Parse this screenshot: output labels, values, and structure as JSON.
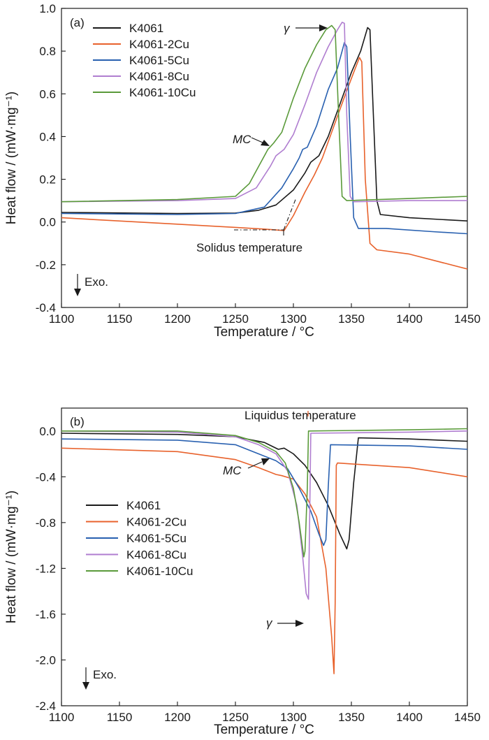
{
  "chart_data": [
    {
      "type": "line",
      "panel_label": "(a)",
      "xlabel": "Temperature / °C",
      "ylabel": "Heat flow / (mW·mg⁻¹)",
      "xlim": [
        1100,
        1450
      ],
      "ylim": [
        -0.4,
        1.0
      ],
      "xticks": [
        "1100",
        "1150",
        "1200",
        "1250",
        "1300",
        "1350",
        "1400",
        "1450"
      ],
      "yticks": [
        "-0.4",
        "-0.2",
        "0.0",
        "0.2",
        "0.4",
        "0.6",
        "0.8",
        "1.0"
      ],
      "grid": false,
      "legend_position": "top-left",
      "series": [
        {
          "name": "K4061",
          "color": "#1a1a1a",
          "points": [
            [
              1100,
              0.045
            ],
            [
              1200,
              0.04
            ],
            [
              1250,
              0.042
            ],
            [
              1270,
              0.055
            ],
            [
              1285,
              0.08
            ],
            [
              1300,
              0.15
            ],
            [
              1310,
              0.23
            ],
            [
              1315,
              0.28
            ],
            [
              1322,
              0.31
            ],
            [
              1330,
              0.4
            ],
            [
              1340,
              0.55
            ],
            [
              1350,
              0.7
            ],
            [
              1358,
              0.8
            ],
            [
              1364,
              0.91
            ],
            [
              1366,
              0.9
            ],
            [
              1369,
              0.5
            ],
            [
              1372,
              0.1
            ],
            [
              1375,
              0.035
            ],
            [
              1400,
              0.02
            ],
            [
              1450,
              0.005
            ]
          ]
        },
        {
          "name": "K4061-2Cu",
          "color": "#e8622c",
          "points": [
            [
              1100,
              0.02
            ],
            [
              1200,
              -0.01
            ],
            [
              1250,
              -0.025
            ],
            [
              1280,
              -0.035
            ],
            [
              1292,
              -0.04
            ],
            [
              1300,
              0.03
            ],
            [
              1310,
              0.14
            ],
            [
              1318,
              0.22
            ],
            [
              1325,
              0.3
            ],
            [
              1335,
              0.45
            ],
            [
              1345,
              0.6
            ],
            [
              1352,
              0.7
            ],
            [
              1357,
              0.77
            ],
            [
              1359,
              0.75
            ],
            [
              1362,
              0.2
            ],
            [
              1366,
              -0.1
            ],
            [
              1372,
              -0.13
            ],
            [
              1400,
              -0.15
            ],
            [
              1450,
              -0.22
            ]
          ]
        },
        {
          "name": "K4061-5Cu",
          "color": "#2860b0",
          "points": [
            [
              1100,
              0.04
            ],
            [
              1200,
              0.035
            ],
            [
              1250,
              0.04
            ],
            [
              1275,
              0.07
            ],
            [
              1290,
              0.16
            ],
            [
              1300,
              0.25
            ],
            [
              1305,
              0.3
            ],
            [
              1308,
              0.34
            ],
            [
              1312,
              0.35
            ],
            [
              1320,
              0.45
            ],
            [
              1330,
              0.62
            ],
            [
              1338,
              0.72
            ],
            [
              1344,
              0.84
            ],
            [
              1346,
              0.82
            ],
            [
              1349,
              0.4
            ],
            [
              1352,
              0.02
            ],
            [
              1356,
              -0.03
            ],
            [
              1380,
              -0.03
            ],
            [
              1420,
              -0.045
            ],
            [
              1450,
              -0.055
            ]
          ]
        },
        {
          "name": "K4061-8Cu",
          "color": "#b07ed0",
          "points": [
            [
              1100,
              0.095
            ],
            [
              1200,
              0.1
            ],
            [
              1250,
              0.11
            ],
            [
              1268,
              0.16
            ],
            [
              1280,
              0.26
            ],
            [
              1285,
              0.31
            ],
            [
              1292,
              0.34
            ],
            [
              1300,
              0.41
            ],
            [
              1310,
              0.55
            ],
            [
              1320,
              0.7
            ],
            [
              1330,
              0.82
            ],
            [
              1338,
              0.9
            ],
            [
              1342,
              0.935
            ],
            [
              1344,
              0.93
            ],
            [
              1346,
              0.5
            ],
            [
              1349,
              0.12
            ],
            [
              1352,
              0.095
            ],
            [
              1400,
              0.1
            ],
            [
              1450,
              0.1
            ]
          ]
        },
        {
          "name": "K4061-10Cu",
          "color": "#5a9a3a",
          "points": [
            [
              1100,
              0.095
            ],
            [
              1200,
              0.105
            ],
            [
              1250,
              0.12
            ],
            [
              1262,
              0.18
            ],
            [
              1272,
              0.28
            ],
            [
              1278,
              0.34
            ],
            [
              1283,
              0.37
            ],
            [
              1290,
              0.42
            ],
            [
              1300,
              0.58
            ],
            [
              1310,
              0.72
            ],
            [
              1320,
              0.83
            ],
            [
              1328,
              0.9
            ],
            [
              1333,
              0.92
            ],
            [
              1336,
              0.9
            ],
            [
              1339,
              0.5
            ],
            [
              1342,
              0.12
            ],
            [
              1346,
              0.1
            ],
            [
              1400,
              0.11
            ],
            [
              1450,
              0.12
            ]
          ]
        }
      ],
      "annotations": [
        {
          "text": "γ",
          "style": "arrow",
          "x": 1333,
          "y": 0.92
        },
        {
          "text": "MC",
          "style": "arrow",
          "x": 1285,
          "y": 0.35
        },
        {
          "text": "Solidus temperature",
          "style": "dash-dot construction",
          "x": 1290,
          "y": -0.035
        },
        {
          "text": "Exo.",
          "style": "arrow-down"
        }
      ]
    },
    {
      "type": "line",
      "panel_label": "(b)",
      "xlabel": "Temperature / °C",
      "ylabel": "Heat flow / (mW·mg⁻¹)",
      "xlim": [
        1100,
        1450
      ],
      "ylim": [
        -2.4,
        0.2
      ],
      "xticks": [
        "1100",
        "1150",
        "1200",
        "1250",
        "1300",
        "1350",
        "1400",
        "1450"
      ],
      "yticks": [
        "-2.4",
        "-2.0",
        "-1.6",
        "-1.2",
        "-0.8",
        "-0.4",
        "0.0"
      ],
      "grid": false,
      "legend_position": "center-left",
      "series": [
        {
          "name": "K4061",
          "color": "#1a1a1a",
          "points": [
            [
              1100,
              -0.02
            ],
            [
              1200,
              -0.03
            ],
            [
              1250,
              -0.05
            ],
            [
              1275,
              -0.1
            ],
            [
              1287,
              -0.16
            ],
            [
              1292,
              -0.15
            ],
            [
              1300,
              -0.2
            ],
            [
              1310,
              -0.3
            ],
            [
              1320,
              -0.45
            ],
            [
              1330,
              -0.65
            ],
            [
              1340,
              -0.9
            ],
            [
              1346,
              -1.03
            ],
            [
              1348,
              -0.95
            ],
            [
              1352,
              -0.45
            ],
            [
              1356,
              -0.06
            ],
            [
              1400,
              -0.07
            ],
            [
              1450,
              -0.09
            ]
          ]
        },
        {
          "name": "K4061-2Cu",
          "color": "#e8622c",
          "points": [
            [
              1100,
              -0.15
            ],
            [
              1200,
              -0.18
            ],
            [
              1250,
              -0.25
            ],
            [
              1270,
              -0.32
            ],
            [
              1285,
              -0.38
            ],
            [
              1290,
              -0.39
            ],
            [
              1300,
              -0.42
            ],
            [
              1310,
              -0.55
            ],
            [
              1320,
              -0.75
            ],
            [
              1328,
              -1.2
            ],
            [
              1333,
              -1.8
            ],
            [
              1335,
              -2.12
            ],
            [
              1336,
              -1.5
            ],
            [
              1337,
              -0.3
            ],
            [
              1338,
              -0.28
            ],
            [
              1400,
              -0.32
            ],
            [
              1450,
              -0.4
            ]
          ]
        },
        {
          "name": "K4061-5Cu",
          "color": "#2860b0",
          "points": [
            [
              1100,
              -0.07
            ],
            [
              1200,
              -0.08
            ],
            [
              1250,
              -0.12
            ],
            [
              1270,
              -0.2
            ],
            [
              1285,
              -0.26
            ],
            [
              1295,
              -0.33
            ],
            [
              1305,
              -0.5
            ],
            [
              1315,
              -0.7
            ],
            [
              1322,
              -0.9
            ],
            [
              1326,
              -1.0
            ],
            [
              1328,
              -0.95
            ],
            [
              1330,
              -0.5
            ],
            [
              1332,
              -0.12
            ],
            [
              1400,
              -0.13
            ],
            [
              1450,
              -0.16
            ]
          ]
        },
        {
          "name": "K4061-8Cu",
          "color": "#b07ed0",
          "points": [
            [
              1100,
              0
            ],
            [
              1200,
              -0.01
            ],
            [
              1250,
              -0.05
            ],
            [
              1270,
              -0.12
            ],
            [
              1285,
              -0.2
            ],
            [
              1295,
              -0.35
            ],
            [
              1303,
              -0.65
            ],
            [
              1308,
              -1.1
            ],
            [
              1311,
              -1.42
            ],
            [
              1313,
              -1.47
            ],
            [
              1314,
              -0.8
            ],
            [
              1315,
              -0.02
            ],
            [
              1400,
              -0.01
            ],
            [
              1450,
              0
            ]
          ]
        },
        {
          "name": "K4061-10Cu",
          "color": "#5a9a3a",
          "points": [
            [
              1100,
              0
            ],
            [
              1200,
              0
            ],
            [
              1250,
              -0.04
            ],
            [
              1270,
              -0.1
            ],
            [
              1285,
              -0.18
            ],
            [
              1293,
              -0.28
            ],
            [
              1300,
              -0.5
            ],
            [
              1305,
              -0.8
            ],
            [
              1309,
              -1.1
            ],
            [
              1310,
              -1.05
            ],
            [
              1312,
              -0.5
            ],
            [
              1313,
              0
            ],
            [
              1400,
              0.01
            ],
            [
              1450,
              0.02
            ]
          ]
        }
      ],
      "annotations": [
        {
          "text": "Liquidus temperature",
          "style": "marker",
          "x": 1312,
          "y": 0
        },
        {
          "text": "MC",
          "style": "arrow",
          "x": 1290,
          "y": -0.39
        },
        {
          "text": "γ",
          "style": "arrow",
          "x": 1311,
          "y": -1.42
        },
        {
          "text": "Exo.",
          "style": "arrow-down"
        }
      ]
    }
  ]
}
